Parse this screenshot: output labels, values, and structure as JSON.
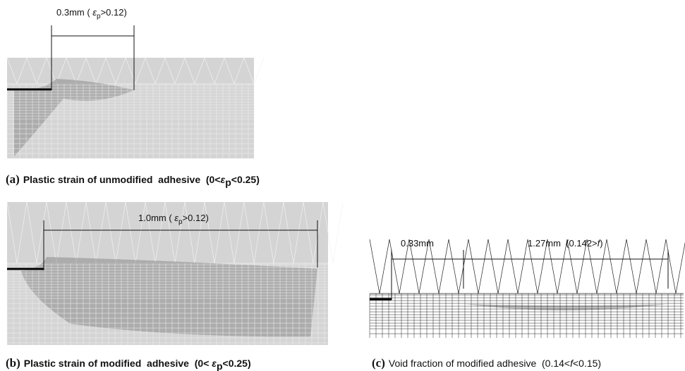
{
  "panels": [
    {
      "label": "(a)",
      "caption": {
        "prefix": "Plastic strain of unmodified  adhesive  (0<",
        "symbol": "ε",
        "subscript": "p",
        "suffix": "<0.25)"
      },
      "dimensions": [
        {
          "prefix": "0.3mm ( ",
          "symbol": "ε",
          "subscript": "p",
          "suffix": ">0.12)"
        }
      ]
    },
    {
      "label": "(b)",
      "caption": {
        "prefix": "Plastic strain of modified  adhesive  (0< ",
        "symbol": "ε",
        "subscript": "p",
        "suffix": "<0.25)"
      },
      "dimensions": [
        {
          "prefix": "1.0mm ( ",
          "symbol": "ε",
          "subscript": "p",
          "suffix": ">0.12)"
        }
      ]
    },
    {
      "label": "(c)",
      "caption": {
        "prefix": "Void fraction of modified adhesive  (0.14<",
        "symbol": "f",
        "suffix": "<0.15)"
      },
      "dimensions": [
        {
          "text": "0.33mm"
        },
        {
          "prefix": "1.27mm  (0.142>",
          "symbol": "f",
          "suffix": ")"
        }
      ]
    }
  ]
}
